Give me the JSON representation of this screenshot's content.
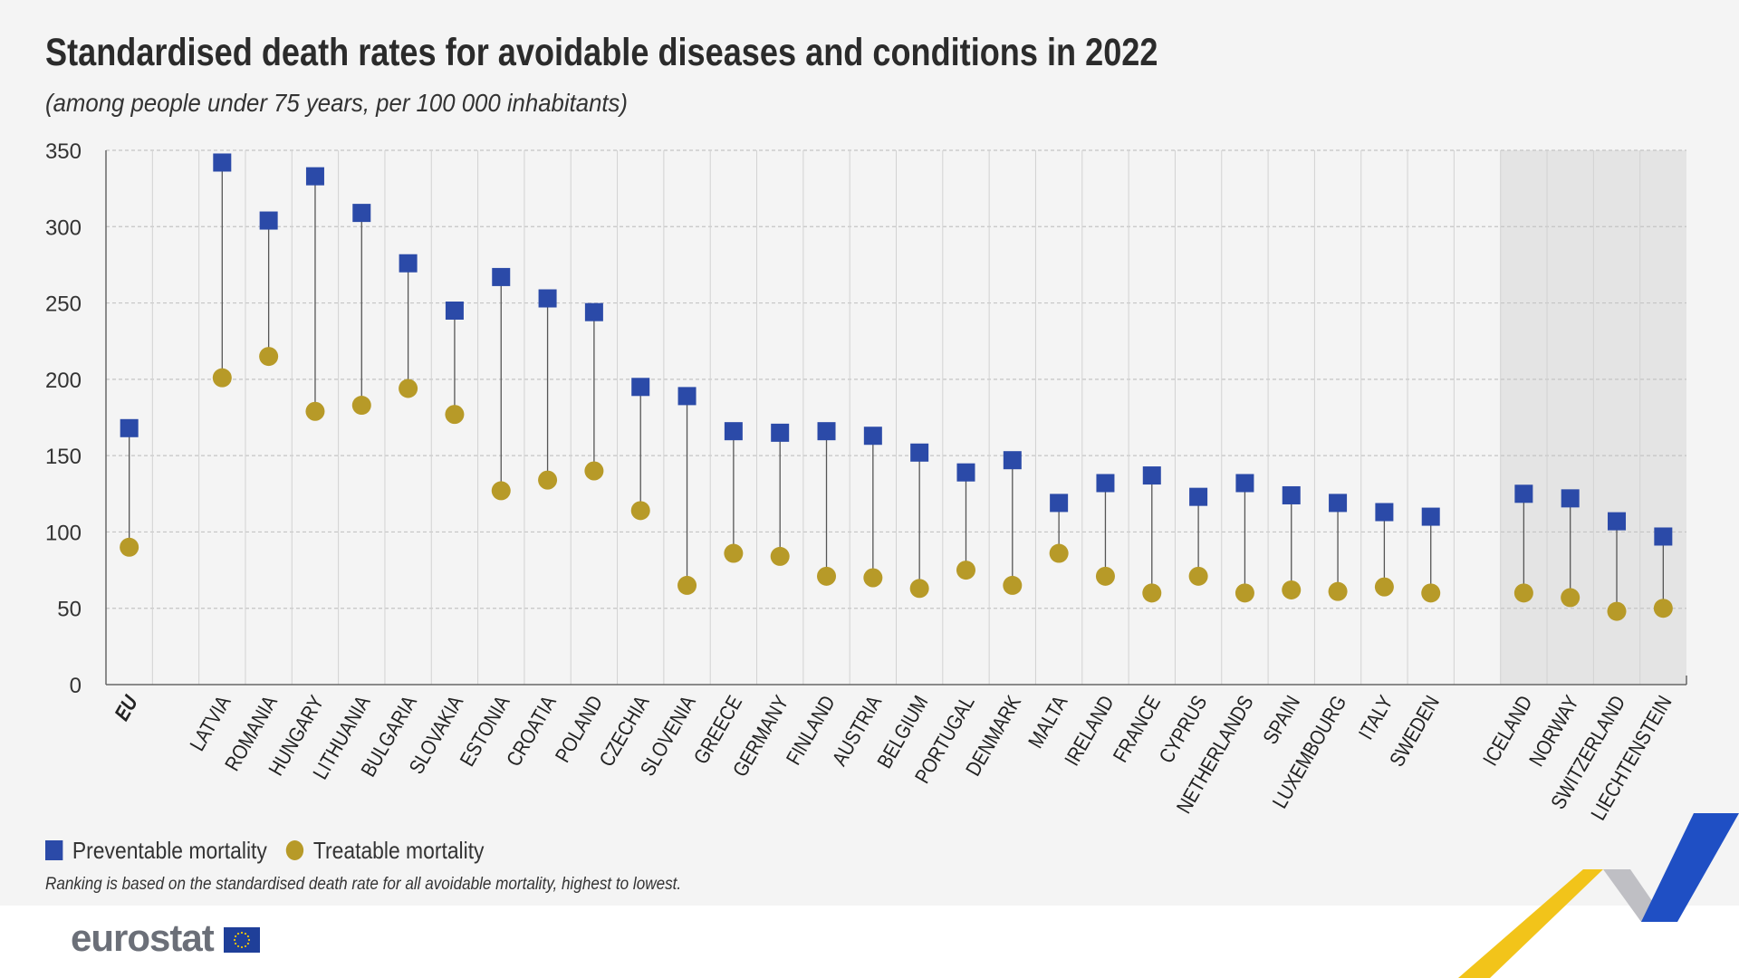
{
  "header": {
    "title": "Standardised death rates for avoidable diseases and conditions in 2022",
    "subtitle": "(among people under 75 years, per 100 000 inhabitants)"
  },
  "legend": {
    "preventable": "Preventable mortality",
    "treatable": "Treatable mortality"
  },
  "note": "Ranking is based on the standardised death rate for all avoidable mortality, highest to lowest.",
  "brand": {
    "logo_text": "eurostat"
  },
  "colors": {
    "preventable": "#2b4aa8",
    "treatable": "#b79a28",
    "shaded_band": "#e4e4e4",
    "background": "#f4f4f4"
  },
  "chart_data": {
    "type": "scatter",
    "y_ticks": [
      "0",
      "50",
      "100",
      "150",
      "200",
      "250",
      "300",
      "350"
    ],
    "ylim": [
      0,
      350
    ],
    "grid": true,
    "categories": [
      "EU",
      "",
      "LATVIA",
      "ROMANIA",
      "HUNGARY",
      "LITHUANIA",
      "BULGARIA",
      "SLOVAKIA",
      "ESTONIA",
      "CROATIA",
      "POLAND",
      "CZECHIA",
      "SLOVENIA",
      "GREECE",
      "GERMANY",
      "FINLAND",
      "AUSTRIA",
      "BELGIUM",
      "PORTUGAL",
      "DENMARK",
      "MALTA",
      "IRELAND",
      "FRANCE",
      "CYPRUS",
      "NETHERLANDS",
      "SPAIN",
      "LUXEMBOURG",
      "ITALY",
      "SWEDEN",
      "",
      "ICELAND",
      "NORWAY",
      "SWITZERLAND",
      "LIECHTENSTEIN"
    ],
    "bold_categories": [
      "EU"
    ],
    "shaded_categories": [
      "ICELAND",
      "NORWAY",
      "SWITZERLAND",
      "LIECHTENSTEIN"
    ],
    "series": [
      {
        "name": "Preventable mortality",
        "marker": "square",
        "values": [
          168,
          null,
          342,
          304,
          333,
          309,
          276,
          245,
          267,
          253,
          244,
          195,
          189,
          166,
          165,
          166,
          163,
          152,
          139,
          147,
          119,
          132,
          137,
          123,
          132,
          124,
          119,
          113,
          110,
          null,
          125,
          122,
          107,
          97
        ]
      },
      {
        "name": "Treatable mortality",
        "marker": "circle",
        "values": [
          90,
          null,
          201,
          215,
          179,
          183,
          194,
          177,
          127,
          134,
          140,
          114,
          65,
          86,
          84,
          71,
          70,
          63,
          75,
          65,
          86,
          71,
          60,
          71,
          60,
          62,
          61,
          64,
          60,
          null,
          60,
          57,
          48,
          50
        ]
      }
    ]
  }
}
